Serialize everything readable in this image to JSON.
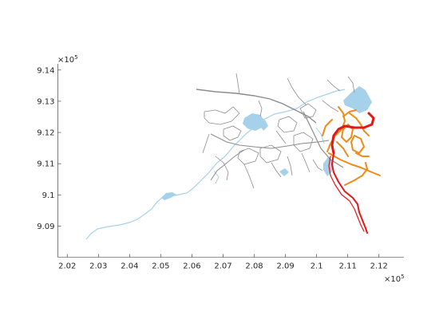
{
  "chart_data": {
    "type": "map",
    "x_axis": {
      "ticks": [
        "2.02",
        "2.03",
        "2.04",
        "2.05",
        "2.06",
        "2.07",
        "2.08",
        "2.09",
        "2.1",
        "2.11",
        "2.12"
      ],
      "multiplier_base": "×10",
      "multiplier_exp": "5",
      "range": [
        2.017,
        2.128
      ]
    },
    "y_axis": {
      "ticks": [
        "9.09",
        "9.1",
        "9.11",
        "9.12",
        "9.13",
        "9.14"
      ],
      "multiplier_base": "×10",
      "multiplier_exp": "5",
      "range": [
        9.08,
        9.142
      ]
    },
    "grid": false,
    "layers": [
      {
        "name": "road network",
        "color": "#8c8c8c"
      },
      {
        "name": "water bodies",
        "color": "#a6d1ea"
      },
      {
        "name": "orange route network",
        "color": "#f08a18"
      },
      {
        "name": "red route",
        "color": "#e01818"
      }
    ],
    "colors": {
      "roads": "#8c8c8c",
      "water": "#a6d1ea",
      "orange": "#f08a18",
      "red": "#e01818",
      "axes": "#262626"
    }
  }
}
